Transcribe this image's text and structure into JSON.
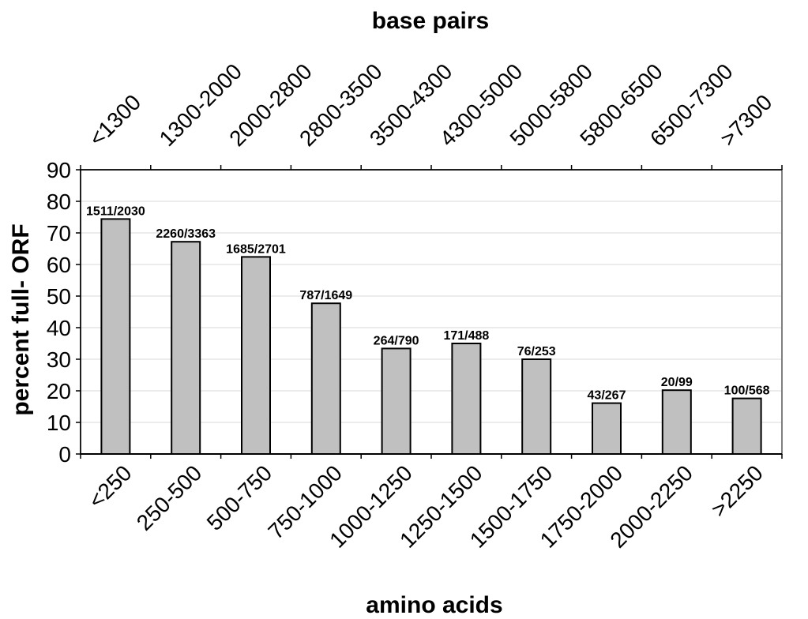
{
  "chart_data": {
    "type": "bar",
    "title": "base pairs",
    "xlabel": "amino acids",
    "ylabel": "percent full- ORF",
    "categories": [
      "<250",
      "250-500",
      "500-750",
      "750-1000",
      "1000-1250",
      "1250-1500",
      "1500-1750",
      "1750-2000",
      "2000-2250",
      ">2250"
    ],
    "top_categories": [
      "<1300",
      "1300-2000",
      "2000-2800",
      "2800-3500",
      "3500-4300",
      "4300-5000",
      "5000-5800",
      "5800-6500",
      "6500-7300",
      ">7300"
    ],
    "values": [
      74.4,
      67.2,
      62.4,
      47.7,
      33.4,
      35.0,
      30.0,
      16.1,
      20.2,
      17.6
    ],
    "data_labels": [
      "1511/2030",
      "2260/3363",
      "1685/2701",
      "787/1649",
      "264/790",
      "171/488",
      "76/253",
      "43/267",
      "20/99",
      "100/568"
    ],
    "ylim": [
      0,
      90
    ],
    "yticks": [
      "0",
      "10",
      "20",
      "30",
      "40",
      "50",
      "60",
      "70",
      "80",
      "90"
    ],
    "grid": true,
    "bar_color": "#c0c0c0"
  }
}
